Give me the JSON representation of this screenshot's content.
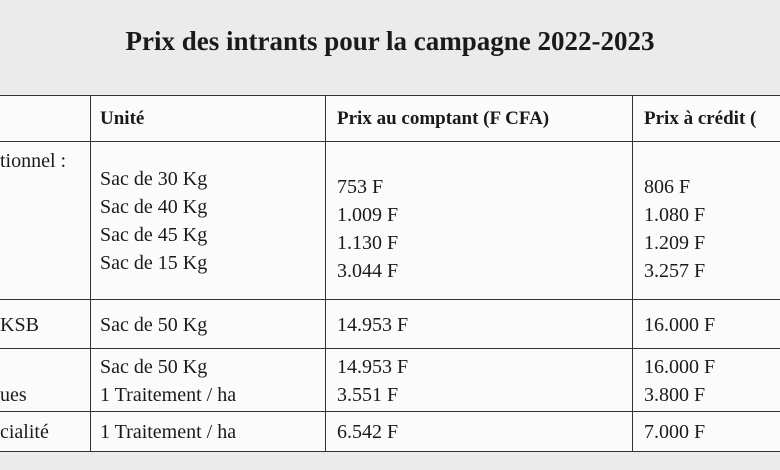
{
  "title": "Prix des intrants pour la campagne 2022-2023",
  "table": {
    "headers": [
      "Unité",
      "Prix au comptant  (F CFA)",
      "Prix à crédit ("
    ],
    "rows": [
      {
        "label": "tionnel :",
        "unit": [
          "Sac de 30 Kg",
          "Sac de 40 Kg",
          "Sac de 45 Kg",
          "Sac de 15 Kg"
        ],
        "cash": [
          "753 F",
          "1.009 F",
          "1.130 F",
          "3.044 F"
        ],
        "credit": [
          "806 F",
          "1.080 F",
          "1.209 F",
          "3.257 F"
        ]
      },
      {
        "label": "KSB",
        "unit": [
          "Sac de 50 Kg"
        ],
        "cash": [
          "14.953 F"
        ],
        "credit": [
          "16.000 F"
        ]
      },
      {
        "label": "ues",
        "unit": [
          "Sac de 50 Kg",
          "1 Traitement / ha"
        ],
        "cash": [
          "14.953 F",
          "3.551 F"
        ],
        "credit": [
          "16.000 F",
          "3.800 F"
        ]
      },
      {
        "label": "cialité",
        "unit": [
          "1 Traitement / ha"
        ],
        "cash": [
          "6.542 F"
        ],
        "credit": [
          "7.000 F"
        ]
      }
    ]
  }
}
